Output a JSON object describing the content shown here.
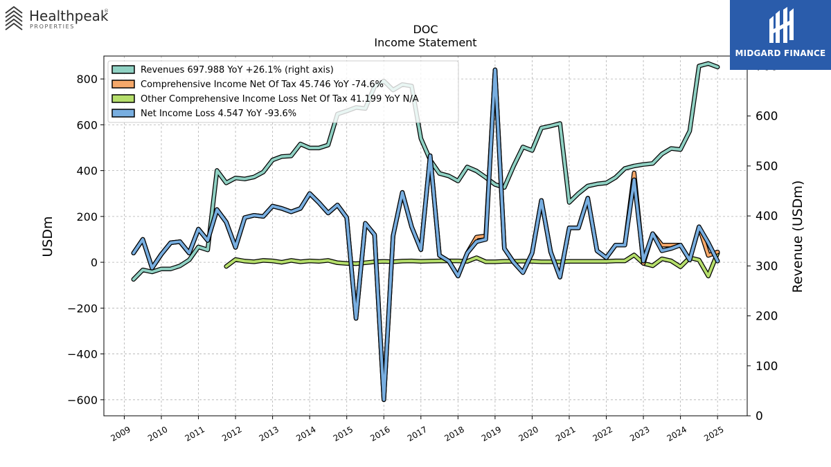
{
  "logos": {
    "left": {
      "name": "Healthpeak",
      "trademark": "®",
      "sub": "PROPERTIES"
    },
    "right": {
      "name": "MIDGARD FINANCE",
      "color": "#2a5cab"
    }
  },
  "chart_data": {
    "type": "line",
    "title": "DOC",
    "subtitle": "Income Statement",
    "ylabel": "USDm",
    "y2label": "Revenue (USDm)",
    "ylim": [
      -670,
      900
    ],
    "y2lim": [
      0,
      720
    ],
    "yticks": [
      -600,
      -400,
      -200,
      0,
      200,
      400,
      600,
      800
    ],
    "ytick_labels": [
      "−600",
      "−400",
      "−200",
      "0",
      "200",
      "400",
      "600",
      "800"
    ],
    "y2ticks": [
      0,
      100,
      200,
      300,
      400,
      500,
      600,
      700
    ],
    "xlim": [
      2008.45,
      2025.8
    ],
    "xticks": [
      2009,
      2010,
      2011,
      2012,
      2013,
      2014,
      2015,
      2016,
      2017,
      2018,
      2019,
      2020,
      2021,
      2022,
      2023,
      2024,
      2025
    ],
    "grid": true,
    "legend_position": "top-left",
    "series": [
      {
        "name": "Revenues",
        "legend": "Revenues  697.988 YoY +26.1% (right axis)",
        "axis": "right",
        "color": "#8fd1c3",
        "x": [
          2009.25,
          2009.5,
          2009.75,
          2010,
          2010.25,
          2010.5,
          2010.75,
          2011,
          2011.25,
          2011.5,
          2011.75,
          2012,
          2012.25,
          2012.5,
          2012.75,
          2013,
          2013.25,
          2013.5,
          2013.75,
          2014,
          2014.25,
          2014.5,
          2014.75,
          2015,
          2015.25,
          2015.5,
          2015.75,
          2016,
          2016.25,
          2016.5,
          2016.75,
          2017,
          2017.25,
          2017.5,
          2017.75,
          2018,
          2018.25,
          2018.5,
          2018.75,
          2019,
          2019.25,
          2019.5,
          2019.75,
          2020,
          2020.25,
          2020.5,
          2020.75,
          2021,
          2021.25,
          2021.5,
          2021.75,
          2022,
          2022.25,
          2022.5,
          2022.75,
          2023,
          2023.25,
          2023.5,
          2023.75,
          2024,
          2024.25,
          2024.5,
          2024.75,
          2025
        ],
        "values": [
          273,
          292,
          288,
          294,
          294,
          300,
          312,
          338,
          332,
          491,
          466,
          476,
          474,
          478,
          488,
          512,
          519,
          520,
          544,
          536,
          536,
          542,
          604,
          610,
          617,
          615,
          659,
          670,
          652,
          663,
          660,
          555,
          512,
          485,
          480,
          470,
          498,
          490,
          477,
          463,
          457,
          500,
          538,
          531,
          576,
          580,
          585,
          427,
          445,
          460,
          464,
          466,
          477,
          495,
          500,
          503,
          505,
          524,
          535,
          533,
          570,
          700,
          705,
          698
        ]
      },
      {
        "name": "Comprehensive Income Net Of Tax",
        "legend": "Comprehensive Income Net Of Tax  45.746 YoY -74.6%",
        "axis": "left",
        "color": "#f5a86a",
        "x": [
          2009.25,
          2009.5,
          2009.75,
          2010,
          2010.25,
          2010.5,
          2010.75,
          2011,
          2011.25,
          2011.5,
          2011.75,
          2012,
          2012.25,
          2012.5,
          2012.75,
          2013,
          2013.25,
          2013.5,
          2013.75,
          2014,
          2014.25,
          2014.5,
          2014.75,
          2015,
          2015.25,
          2015.5,
          2015.75,
          2016,
          2016.25,
          2016.5,
          2016.75,
          2017,
          2017.25,
          2017.5,
          2017.75,
          2018,
          2018.25,
          2018.5,
          2018.75,
          2019,
          2019.25,
          2019.5,
          2019.75,
          2020,
          2020.25,
          2020.5,
          2020.75,
          2021,
          2021.25,
          2021.5,
          2021.75,
          2022,
          2022.25,
          2022.5,
          2022.75,
          2023,
          2023.25,
          2023.5,
          2023.75,
          2024,
          2024.25,
          2024.5,
          2024.75,
          2025
        ],
        "values": [
          40,
          100,
          -25,
          35,
          85,
          90,
          40,
          145,
          95,
          230,
          175,
          65,
          195,
          205,
          200,
          245,
          235,
          220,
          235,
          300,
          260,
          215,
          250,
          195,
          -245,
          170,
          120,
          -600,
          115,
          305,
          155,
          55,
          465,
          30,
          5,
          -60,
          40,
          110,
          115,
          840,
          60,
          0,
          -45,
          40,
          270,
          45,
          -65,
          150,
          150,
          280,
          50,
          20,
          75,
          75,
          390,
          -5,
          125,
          75,
          75,
          75,
          10,
          155,
          30,
          45
        ]
      },
      {
        "name": "Other Comprehensive Income Loss Net Of Tax",
        "legend": "Other Comprehensive Income Loss Net Of Tax  41.199 YoY N/A",
        "axis": "left",
        "color": "#b5de6b",
        "x": [
          2011.75,
          2012,
          2012.25,
          2012.5,
          2012.75,
          2013,
          2013.25,
          2013.5,
          2013.75,
          2014,
          2014.25,
          2014.5,
          2014.75,
          2015,
          2015.25,
          2015.5,
          2015.75,
          2016,
          2016.25,
          2016.5,
          2016.75,
          2017,
          2017.25,
          2017.5,
          2017.75,
          2018,
          2018.25,
          2018.5,
          2018.75,
          2019,
          2019.25,
          2019.5,
          2019.75,
          2020,
          2020.25,
          2020.5,
          2020.75,
          2021,
          2021.25,
          2021.5,
          2021.75,
          2022,
          2022.25,
          2022.5,
          2022.75,
          2023,
          2023.25,
          2023.5,
          2023.75,
          2024,
          2024.25,
          2024.5,
          2024.75,
          2025
        ],
        "values": [
          -18,
          12,
          5,
          2,
          8,
          6,
          0,
          8,
          2,
          6,
          4,
          8,
          -2,
          -5,
          -6,
          -2,
          2,
          4,
          2,
          5,
          6,
          4,
          5,
          6,
          6,
          6,
          4,
          20,
          2,
          2,
          4,
          4,
          5,
          4,
          2,
          2,
          2,
          4,
          4,
          4,
          4,
          4,
          6,
          6,
          32,
          -5,
          -15,
          15,
          6,
          -20,
          20,
          10,
          -60,
          40
        ]
      },
      {
        "name": "Net Income Loss",
        "legend": "Net Income Loss  4.547 YoY -93.6%",
        "axis": "left",
        "color": "#78aee0",
        "x": [
          2009.25,
          2009.5,
          2009.75,
          2010,
          2010.25,
          2010.5,
          2010.75,
          2011,
          2011.25,
          2011.5,
          2011.75,
          2012,
          2012.25,
          2012.5,
          2012.75,
          2013,
          2013.25,
          2013.5,
          2013.75,
          2014,
          2014.25,
          2014.5,
          2014.75,
          2015,
          2015.25,
          2015.5,
          2015.75,
          2016,
          2016.25,
          2016.5,
          2016.75,
          2017,
          2017.25,
          2017.5,
          2017.75,
          2018,
          2018.25,
          2018.5,
          2018.75,
          2019,
          2019.25,
          2019.5,
          2019.75,
          2020,
          2020.25,
          2020.5,
          2020.75,
          2021,
          2021.25,
          2021.5,
          2021.75,
          2022,
          2022.25,
          2022.5,
          2022.75,
          2023,
          2023.25,
          2023.5,
          2023.75,
          2024,
          2024.25,
          2024.5,
          2024.75,
          2025
        ],
        "values": [
          40,
          100,
          -25,
          35,
          85,
          90,
          40,
          145,
          95,
          230,
          175,
          65,
          195,
          205,
          200,
          245,
          235,
          220,
          235,
          300,
          260,
          215,
          250,
          195,
          -245,
          170,
          120,
          -600,
          115,
          305,
          155,
          55,
          465,
          30,
          5,
          -60,
          40,
          90,
          100,
          840,
          60,
          0,
          -45,
          40,
          270,
          45,
          -65,
          150,
          150,
          280,
          50,
          20,
          75,
          75,
          360,
          5,
          125,
          50,
          60,
          75,
          10,
          155,
          85,
          5
        ]
      }
    ]
  }
}
